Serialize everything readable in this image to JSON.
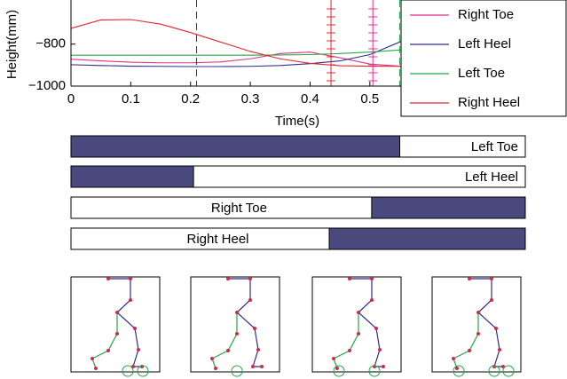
{
  "chart_data": [
    {
      "type": "line",
      "x": [
        0,
        0.05,
        0.1,
        0.15,
        0.2,
        0.25,
        0.3,
        0.35,
        0.4,
        0.45,
        0.5,
        0.55,
        0.6,
        0.65,
        0.7,
        0.75
      ],
      "series": [
        {
          "name": "Right Toe",
          "color": "#e2308f",
          "values": [
            -872,
            -880,
            -886,
            -889,
            -889,
            -885,
            -870,
            -845,
            -838,
            -865,
            -895,
            -905,
            -905,
            -905,
            -905,
            -905
          ]
        },
        {
          "name": "Left Heel",
          "color": "#2b2f8e",
          "values": [
            -898,
            -902,
            -905,
            -906,
            -907,
            -907,
            -906,
            -902,
            -893,
            -880,
            -850,
            -790,
            -745,
            -700,
            -660,
            -620
          ]
        },
        {
          "name": "Left Toe",
          "color": "#22a845",
          "values": [
            -853,
            -853,
            -853,
            -853,
            -853,
            -853,
            -853,
            -852,
            -850,
            -845,
            -838,
            -828,
            -818,
            -808,
            -798,
            -790
          ]
        },
        {
          "name": "Right Heel",
          "color": "#e8242c",
          "values": [
            -725,
            -685,
            -683,
            -705,
            -745,
            -790,
            -835,
            -870,
            -892,
            -903,
            -905,
            -906,
            -908,
            -910,
            -912,
            -912
          ]
        }
      ],
      "events": [
        {
          "x": 0.21,
          "color": "#2b2f8e",
          "style": "dashed"
        },
        {
          "x": 0.435,
          "color": "#e8242c",
          "style": "solid"
        },
        {
          "x": 0.505,
          "color": "#e2308f",
          "style": "solid"
        },
        {
          "x": 0.55,
          "color": "#22a845",
          "style": "dashed"
        }
      ],
      "xlabel": "Time(s)",
      "ylabel": "Height(mm)",
      "xlim": [
        0,
        0.76
      ],
      "xticks": [
        0,
        0.1,
        0.2,
        0.3,
        0.4,
        0.5
      ],
      "ylim": [
        -1000,
        -590
      ],
      "yticks": [
        {
          "value": -1000,
          "label": "−1000"
        },
        {
          "value": -800,
          "label": "−800"
        }
      ],
      "legend": "upper right"
    },
    {
      "type": "contact",
      "xlim": [
        0,
        0.76
      ],
      "color": "#4a4a7e",
      "bars": [
        {
          "label": "Left Toe",
          "start": 0,
          "end": 0.55
        },
        {
          "label": "Left Heel",
          "start": 0,
          "end": 0.205
        },
        {
          "label": "Right Toe",
          "start": 0.503,
          "end": 0.76
        },
        {
          "label": "Right Heel",
          "start": 0.432,
          "end": 0.76
        }
      ]
    }
  ]
}
